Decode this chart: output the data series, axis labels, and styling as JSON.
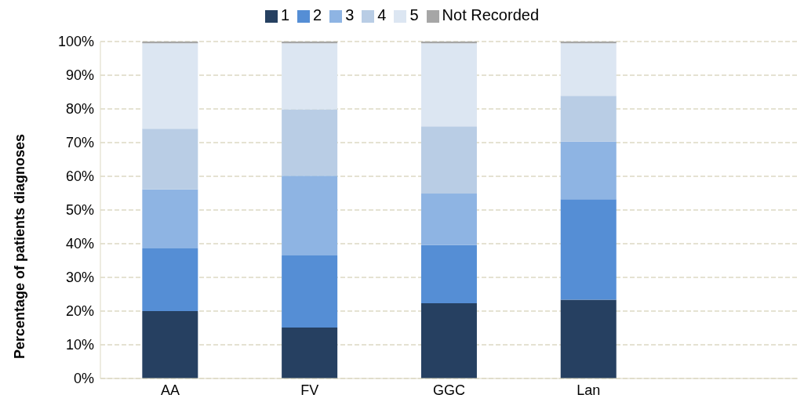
{
  "chart_data": {
    "type": "bar",
    "stacked": true,
    "ylabel": "Percentage of patients diagnoses",
    "categories": [
      "AA",
      "FV",
      "GGC",
      "Lan",
      null
    ],
    "series": [
      {
        "name": "1",
        "color": "#264061",
        "values": [
          20,
          15.1,
          22.3,
          23.4,
          null
        ]
      },
      {
        "name": "2",
        "color": "#558ed5",
        "values": [
          18.6,
          21.4,
          17.3,
          29.8,
          null
        ]
      },
      {
        "name": "3",
        "color": "#8eb4e3",
        "values": [
          17.5,
          23.7,
          15.3,
          17.1,
          null
        ]
      },
      {
        "name": "4",
        "color": "#b9cde5",
        "values": [
          18,
          19.7,
          19.9,
          13.6,
          null
        ]
      },
      {
        "name": "5",
        "color": "#dce6f2",
        "values": [
          25.4,
          19.6,
          24.7,
          15.6,
          null
        ]
      },
      {
        "name": "Not Recorded",
        "color": "#a6a6a6",
        "values": [
          0.5,
          0.5,
          0.5,
          0.5,
          null
        ]
      }
    ],
    "ylim": [
      0,
      100
    ],
    "yticks": [
      {
        "value": 0,
        "label": "0%"
      },
      {
        "value": 10,
        "label": "10%"
      },
      {
        "value": 20,
        "label": "20%"
      },
      {
        "value": 30,
        "label": "30%"
      },
      {
        "value": 40,
        "label": "40%"
      },
      {
        "value": 50,
        "label": "50%"
      },
      {
        "value": 60,
        "label": "60%"
      },
      {
        "value": 70,
        "label": "70%"
      },
      {
        "value": 80,
        "label": "80%"
      },
      {
        "value": 90,
        "label": "90%"
      },
      {
        "value": 100,
        "label": "100%"
      }
    ],
    "grid": "y",
    "legend": "top"
  }
}
